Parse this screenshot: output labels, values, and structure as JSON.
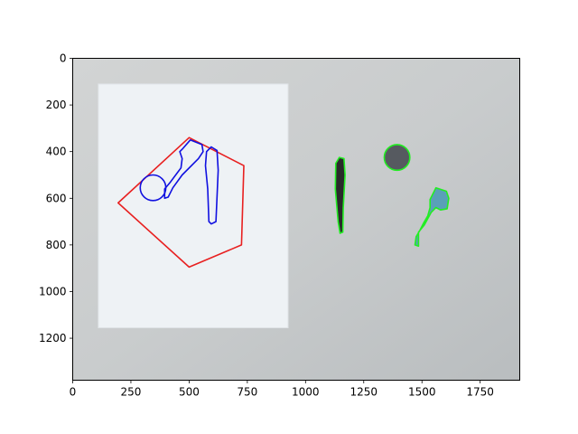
{
  "chart_data": {
    "type": "image-with-contour-overlays",
    "title": "",
    "xlabel": "",
    "ylabel": "",
    "xlim": [
      0,
      1920
    ],
    "ylim": [
      1380,
      0
    ],
    "y_axis_inverted": true,
    "x_ticks": [
      0,
      250,
      500,
      750,
      1000,
      1250,
      1500,
      1750
    ],
    "y_ticks": [
      0,
      200,
      400,
      600,
      800,
      1000,
      1200
    ],
    "grid": false,
    "legend": "none",
    "background": {
      "desk_color": "#c9cccd",
      "paper": {
        "color": "#eef2f5",
        "corners": [
          [
            110,
            110
          ],
          [
            925,
            110
          ],
          [
            925,
            1155
          ],
          [
            110,
            1155
          ]
        ]
      }
    },
    "objects": [
      {
        "name": "reference-polygon",
        "color": "#e82020",
        "points": [
          [
            500,
            340
          ],
          [
            735,
            460
          ],
          [
            725,
            800
          ],
          [
            500,
            895
          ],
          [
            195,
            620
          ]
        ]
      },
      {
        "name": "paper-tool-outline",
        "color": "#1010e0",
        "points": [
          [
            505,
            350
          ],
          [
            555,
            370
          ],
          [
            560,
            400
          ],
          [
            540,
            430
          ],
          [
            470,
            500
          ],
          [
            430,
            555
          ],
          [
            410,
            595
          ],
          [
            395,
            600
          ],
          [
            395,
            560
          ],
          [
            420,
            530
          ],
          [
            450,
            490
          ],
          [
            465,
            470
          ],
          [
            470,
            430
          ],
          [
            460,
            400
          ],
          [
            470,
            390
          ]
        ]
      },
      {
        "name": "paper-circle-outline",
        "color": "#1010e0",
        "shape": "circle",
        "center": [
          345,
          555
        ],
        "radius": 55
      },
      {
        "name": "paper-bar-outline",
        "color": "#1010e0",
        "points": [
          [
            595,
            380
          ],
          [
            620,
            395
          ],
          [
            625,
            480
          ],
          [
            615,
            700
          ],
          [
            595,
            710
          ],
          [
            585,
            700
          ],
          [
            580,
            560
          ],
          [
            570,
            460
          ],
          [
            575,
            400
          ]
        ]
      },
      {
        "name": "stick-object",
        "color": "#22ee22",
        "fill": "#2a2a2a",
        "points": [
          [
            1145,
            425
          ],
          [
            1165,
            430
          ],
          [
            1170,
            500
          ],
          [
            1162,
            640
          ],
          [
            1160,
            745
          ],
          [
            1148,
            750
          ],
          [
            1140,
            700
          ],
          [
            1128,
            560
          ],
          [
            1130,
            450
          ]
        ]
      },
      {
        "name": "coin-object",
        "color": "#22ee22",
        "fill": "#565a60",
        "shape": "circle",
        "center": [
          1393,
          425
        ],
        "radius": 55
      },
      {
        "name": "key-object",
        "color": "#22ee22",
        "fill": "#5aa0b8",
        "points": [
          [
            1560,
            555
          ],
          [
            1605,
            570
          ],
          [
            1615,
            600
          ],
          [
            1608,
            645
          ],
          [
            1580,
            650
          ],
          [
            1560,
            640
          ],
          [
            1540,
            660
          ],
          [
            1510,
            715
          ],
          [
            1485,
            745
          ],
          [
            1485,
            805
          ],
          [
            1470,
            800
          ],
          [
            1475,
            765
          ],
          [
            1490,
            740
          ],
          [
            1505,
            710
          ],
          [
            1525,
            675
          ],
          [
            1535,
            640
          ],
          [
            1535,
            605
          ]
        ]
      }
    ]
  }
}
